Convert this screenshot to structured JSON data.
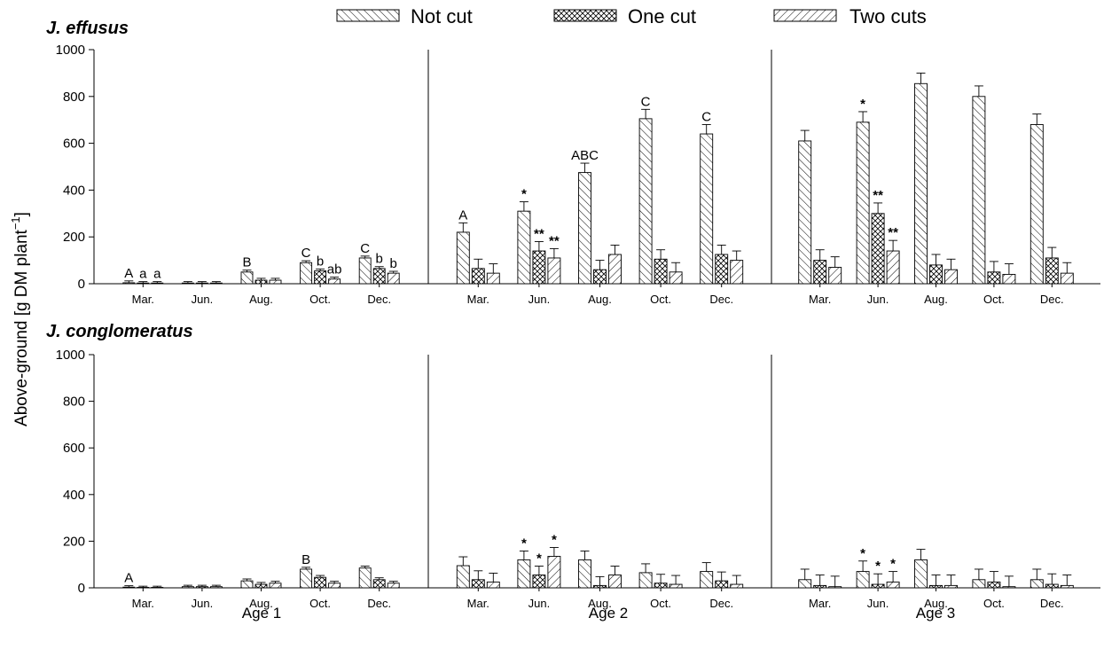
{
  "legend": [
    {
      "label": "Not cut",
      "pattern": "back"
    },
    {
      "label": "One cut",
      "pattern": "cross"
    },
    {
      "label": "Two cuts",
      "pattern": "fwd"
    }
  ],
  "ylabel_main": "Above-ground [g DM plant",
  "ylabel_sup": "−1",
  "ylabel_end": "]",
  "chart_data": {
    "type": "bar",
    "months": [
      "Mar.",
      "Jun.",
      "Aug.",
      "Oct.",
      "Dec."
    ],
    "ages": [
      "Age 1",
      "Age 2",
      "Age 3"
    ],
    "series_names": [
      "Not cut",
      "One cut",
      "Two cuts"
    ],
    "ylim": [
      0,
      1000
    ],
    "yticks": [
      "0",
      "200",
      "400",
      "600",
      "800",
      "1000"
    ],
    "panels": [
      {
        "species": "J. effusus",
        "groups": [
          {
            "age": "Age 1",
            "month": "Mar.",
            "values": [
              4,
              3,
              3
            ],
            "errors": [
              8,
              6,
              6
            ],
            "labels": [
              "A",
              "a",
              "a"
            ]
          },
          {
            "age": "Age 1",
            "month": "Jun.",
            "values": [
              3,
              3,
              3
            ],
            "errors": [
              6,
              6,
              6
            ],
            "labels": [
              "",
              "",
              ""
            ]
          },
          {
            "age": "Age 1",
            "month": "Aug.",
            "values": [
              50,
              15,
              15
            ],
            "errors": [
              8,
              8,
              8
            ],
            "labels": [
              "B",
              "",
              ""
            ]
          },
          {
            "age": "Age 1",
            "month": "Oct.",
            "values": [
              90,
              55,
              20
            ],
            "errors": [
              8,
              8,
              8
            ],
            "labels": [
              "C",
              "b",
              "ab"
            ]
          },
          {
            "age": "Age 1",
            "month": "Dec.",
            "values": [
              110,
              65,
              45
            ],
            "errors": [
              8,
              8,
              8
            ],
            "labels": [
              "C",
              "b",
              "b"
            ]
          },
          {
            "age": "Age 2",
            "month": "Mar.",
            "values": [
              220,
              65,
              45
            ],
            "errors": [
              40,
              40,
              40
            ],
            "labels": [
              "A",
              "",
              ""
            ]
          },
          {
            "age": "Age 2",
            "month": "Jun.",
            "values": [
              310,
              140,
              110
            ],
            "errors": [
              40,
              40,
              40
            ],
            "labels": [
              "*",
              "**",
              "**"
            ]
          },
          {
            "age": "Age 2",
            "month": "Aug.",
            "values": [
              475,
              60,
              125
            ],
            "errors": [
              40,
              40,
              40
            ],
            "labels": [
              "ABC",
              "",
              ""
            ]
          },
          {
            "age": "Age 2",
            "month": "Oct.",
            "values": [
              705,
              105,
              50
            ],
            "errors": [
              40,
              40,
              40
            ],
            "labels": [
              "C",
              "",
              ""
            ]
          },
          {
            "age": "Age 2",
            "month": "Dec.",
            "values": [
              640,
              125,
              100
            ],
            "errors": [
              40,
              40,
              40
            ],
            "labels": [
              "C",
              "",
              ""
            ]
          },
          {
            "age": "Age 3",
            "month": "Mar.",
            "values": [
              610,
              100,
              70
            ],
            "errors": [
              45,
              45,
              45
            ],
            "labels": [
              "",
              "",
              ""
            ]
          },
          {
            "age": "Age 3",
            "month": "Jun.",
            "values": [
              690,
              300,
              140
            ],
            "errors": [
              45,
              45,
              45
            ],
            "labels": [
              "*",
              "**",
              "**"
            ]
          },
          {
            "age": "Age 3",
            "month": "Aug.",
            "values": [
              855,
              80,
              60
            ],
            "errors": [
              45,
              45,
              45
            ],
            "labels": [
              "",
              "",
              ""
            ]
          },
          {
            "age": "Age 3",
            "month": "Oct.",
            "values": [
              800,
              50,
              40
            ],
            "errors": [
              45,
              45,
              45
            ],
            "labels": [
              "",
              "",
              ""
            ]
          },
          {
            "age": "Age 3",
            "month": "Dec.",
            "values": [
              680,
              110,
              45
            ],
            "errors": [
              45,
              45,
              45
            ],
            "labels": [
              "",
              "",
              ""
            ]
          }
        ]
      },
      {
        "species": "J. conglomeratus",
        "groups": [
          {
            "age": "Age 1",
            "month": "Mar.",
            "values": [
              3,
              2,
              2
            ],
            "errors": [
              6,
              5,
              5
            ],
            "labels": [
              "A",
              "",
              ""
            ]
          },
          {
            "age": "Age 1",
            "month": "Jun.",
            "values": [
              5,
              5,
              5
            ],
            "errors": [
              6,
              6,
              6
            ],
            "labels": [
              "",
              "",
              ""
            ]
          },
          {
            "age": "Age 1",
            "month": "Aug.",
            "values": [
              30,
              15,
              20
            ],
            "errors": [
              8,
              8,
              8
            ],
            "labels": [
              "",
              "",
              ""
            ]
          },
          {
            "age": "Age 1",
            "month": "Oct.",
            "values": [
              80,
              45,
              20
            ],
            "errors": [
              8,
              8,
              8
            ],
            "labels": [
              "B",
              "",
              ""
            ]
          },
          {
            "age": "Age 1",
            "month": "Dec.",
            "values": [
              85,
              35,
              20
            ],
            "errors": [
              8,
              8,
              8
            ],
            "labels": [
              "",
              "",
              ""
            ]
          },
          {
            "age": "Age 2",
            "month": "Mar.",
            "values": [
              95,
              35,
              25
            ],
            "errors": [
              38,
              38,
              38
            ],
            "labels": [
              "",
              "",
              ""
            ]
          },
          {
            "age": "Age 2",
            "month": "Jun.",
            "values": [
              120,
              55,
              135
            ],
            "errors": [
              38,
              38,
              38
            ],
            "labels": [
              "*",
              "*",
              "*"
            ]
          },
          {
            "age": "Age 2",
            "month": "Aug.",
            "values": [
              120,
              10,
              55
            ],
            "errors": [
              38,
              38,
              38
            ],
            "labels": [
              "",
              "",
              ""
            ]
          },
          {
            "age": "Age 2",
            "month": "Oct.",
            "values": [
              65,
              20,
              15
            ],
            "errors": [
              38,
              38,
              38
            ],
            "labels": [
              "",
              "",
              ""
            ]
          },
          {
            "age": "Age 2",
            "month": "Dec.",
            "values": [
              70,
              30,
              15
            ],
            "errors": [
              38,
              38,
              38
            ],
            "labels": [
              "",
              "",
              ""
            ]
          },
          {
            "age": "Age 3",
            "month": "Mar.",
            "values": [
              35,
              10,
              5
            ],
            "errors": [
              45,
              45,
              45
            ],
            "labels": [
              "",
              "",
              ""
            ]
          },
          {
            "age": "Age 3",
            "month": "Jun.",
            "values": [
              70,
              15,
              25
            ],
            "errors": [
              45,
              45,
              45
            ],
            "labels": [
              "*",
              "*",
              "*"
            ]
          },
          {
            "age": "Age 3",
            "month": "Aug.",
            "values": [
              120,
              10,
              10
            ],
            "errors": [
              45,
              45,
              45
            ],
            "labels": [
              "",
              "",
              ""
            ]
          },
          {
            "age": "Age 3",
            "month": "Oct.",
            "values": [
              35,
              25,
              5
            ],
            "errors": [
              45,
              45,
              45
            ],
            "labels": [
              "",
              "",
              ""
            ]
          },
          {
            "age": "Age 3",
            "month": "Dec.",
            "values": [
              35,
              15,
              10
            ],
            "errors": [
              45,
              45,
              45
            ],
            "labels": [
              "",
              "",
              ""
            ]
          }
        ]
      }
    ]
  }
}
